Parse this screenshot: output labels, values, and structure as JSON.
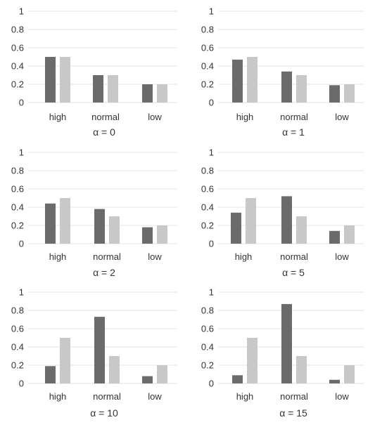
{
  "colors": {
    "series_a": "#6b6b6b",
    "series_b": "#c8c8c8",
    "grid": "#e3e3e3"
  },
  "chart_data": [
    {
      "type": "bar",
      "title": "α = 0",
      "categories": [
        "high",
        "normal",
        "low"
      ],
      "ylim": [
        0,
        1
      ],
      "yticks": [
        "0",
        "0.2",
        "0.4",
        "0.6",
        "0.8",
        "1"
      ],
      "grid": true,
      "series": [
        {
          "values": [
            0.5,
            0.3,
            0.2
          ]
        },
        {
          "values": [
            0.5,
            0.3,
            0.2
          ]
        }
      ]
    },
    {
      "type": "bar",
      "title": "α = 1",
      "categories": [
        "high",
        "normal",
        "low"
      ],
      "ylim": [
        0,
        1
      ],
      "yticks": [
        "0",
        "0.2",
        "0.4",
        "0.6",
        "0.8",
        "1"
      ],
      "grid": true,
      "series": [
        {
          "values": [
            0.47,
            0.34,
            0.19
          ]
        },
        {
          "values": [
            0.5,
            0.3,
            0.2
          ]
        }
      ]
    },
    {
      "type": "bar",
      "title": "α = 2",
      "categories": [
        "high",
        "normal",
        "low"
      ],
      "ylim": [
        0,
        1
      ],
      "yticks": [
        "0",
        "0.2",
        "0.4",
        "0.6",
        "0.8",
        "1"
      ],
      "grid": true,
      "series": [
        {
          "values": [
            0.44,
            0.38,
            0.18
          ]
        },
        {
          "values": [
            0.5,
            0.3,
            0.2
          ]
        }
      ]
    },
    {
      "type": "bar",
      "title": "α = 5",
      "categories": [
        "high",
        "normal",
        "low"
      ],
      "ylim": [
        0,
        1
      ],
      "yticks": [
        "0",
        "0.2",
        "0.4",
        "0.6",
        "0.8",
        "1"
      ],
      "grid": true,
      "series": [
        {
          "values": [
            0.34,
            0.52,
            0.14
          ]
        },
        {
          "values": [
            0.5,
            0.3,
            0.2
          ]
        }
      ]
    },
    {
      "type": "bar",
      "title": "α = 10",
      "categories": [
        "high",
        "normal",
        "low"
      ],
      "ylim": [
        0,
        1
      ],
      "yticks": [
        "0",
        "0.2",
        "0.4",
        "0.6",
        "0.8",
        "1"
      ],
      "grid": true,
      "series": [
        {
          "values": [
            0.19,
            0.73,
            0.08
          ]
        },
        {
          "values": [
            0.5,
            0.3,
            0.2
          ]
        }
      ]
    },
    {
      "type": "bar",
      "title": "α = 15",
      "categories": [
        "high",
        "normal",
        "low"
      ],
      "ylim": [
        0,
        1
      ],
      "yticks": [
        "0",
        "0.2",
        "0.4",
        "0.6",
        "0.8",
        "1"
      ],
      "grid": true,
      "series": [
        {
          "values": [
            0.09,
            0.87,
            0.04
          ]
        },
        {
          "values": [
            0.5,
            0.3,
            0.2
          ]
        }
      ]
    }
  ]
}
